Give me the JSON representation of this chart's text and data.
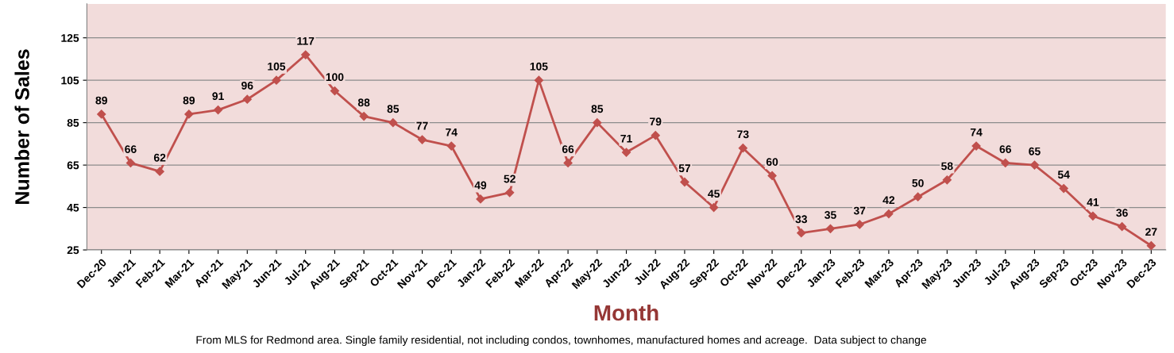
{
  "chart_data": {
    "type": "line",
    "xlabel": "Month",
    "ylabel": "Number of Sales",
    "categories": [
      "Dec-20",
      "Jan-21",
      "Feb-21",
      "Mar-21",
      "Apr-21",
      "May-21",
      "Jun-21",
      "Jul-21",
      "Aug-21",
      "Sep-21",
      "Oct-21",
      "Nov-21",
      "Dec-21",
      "Jan-22",
      "Feb-22",
      "Mar-22",
      "Apr-22",
      "May-22",
      "Jun-22",
      "Jul-22",
      "Aug-22",
      "Sep-22",
      "Oct-22",
      "Nov-22",
      "Dec-22",
      "Jan-23",
      "Feb-23",
      "Mar-23",
      "Apr-23",
      "May-23",
      "Jun-23",
      "Jul-23",
      "Aug-23",
      "Sep-23",
      "Oct-23",
      "Nov-23",
      "Dec-23"
    ],
    "series": [
      {
        "color": "#c0504d",
        "values": [
          89,
          66,
          62,
          89,
          91,
          96,
          105,
          117,
          100,
          88,
          85,
          77,
          74,
          49,
          52,
          105,
          66,
          85,
          71,
          79,
          57,
          45,
          73,
          60,
          33,
          35,
          37,
          42,
          50,
          58,
          74,
          66,
          65,
          54,
          41,
          36,
          27
        ]
      }
    ],
    "ylim": [
      25,
      141
    ],
    "yticks": [
      25,
      45,
      65,
      85,
      105,
      125
    ],
    "grid": "y",
    "marker": "diamond",
    "line_style": "solid",
    "data_labels": true,
    "legend": false,
    "annotations": [
      "From MLS for Redmond area. Single family residential, not including condos, townhomes, manufactured homes and acreage.  Data subject to change"
    ]
  }
}
